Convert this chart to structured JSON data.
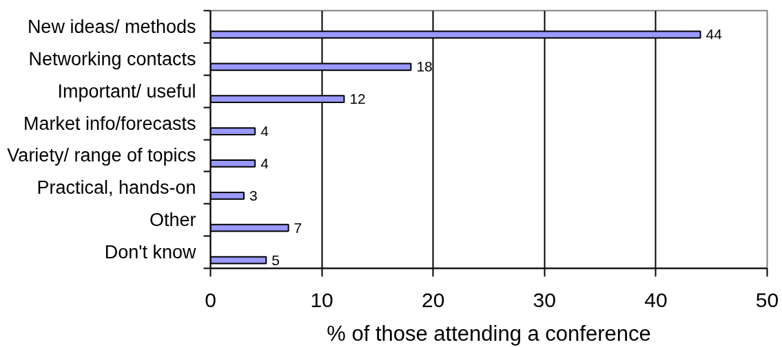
{
  "chart_data": {
    "type": "bar",
    "orientation": "horizontal",
    "xlabel": "% of those attending a conference",
    "categories": [
      "New ideas/ methods",
      "Networking contacts",
      "Important/ useful",
      "Market info/forecasts",
      "Variety/ range of topics",
      "Practical, hands-on",
      "Other",
      "Don't know"
    ],
    "values": [
      44,
      18,
      12,
      4,
      4,
      3,
      7,
      5
    ],
    "color": "#9999ff",
    "xlim": [
      0,
      50
    ],
    "xticks": [
      0,
      10,
      20,
      30,
      40,
      50
    ],
    "grid": "x",
    "data_labels": true
  }
}
